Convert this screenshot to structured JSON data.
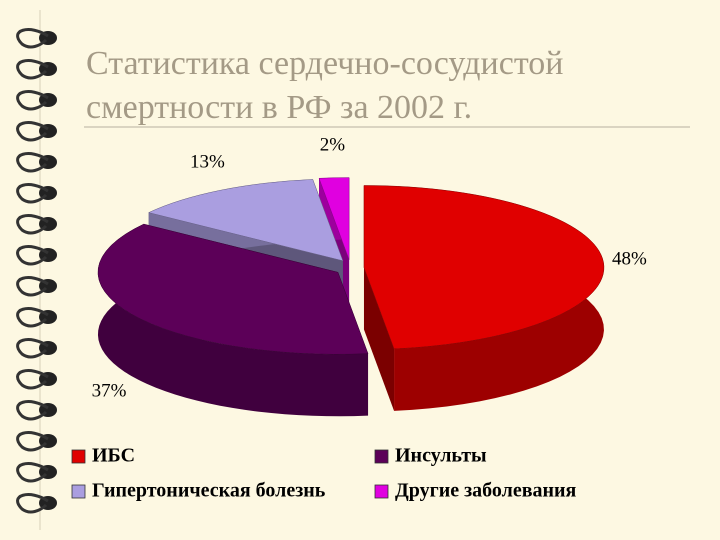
{
  "chart_data": {
    "type": "pie",
    "title": "Статистика сердечно-сосудистой смертности в РФ за 2002 г.",
    "categories": [
      "ИБС",
      "Инсульты",
      "Гипертоническая болезнь",
      "Другие заболевания"
    ],
    "values": [
      48,
      37,
      13,
      2
    ],
    "value_labels": [
      "48%",
      "37%",
      "13%",
      "2%"
    ],
    "colors": [
      "#e00000",
      "#5c0058",
      "#aa9ee0",
      "#e000e0"
    ],
    "legend": "bottom"
  }
}
